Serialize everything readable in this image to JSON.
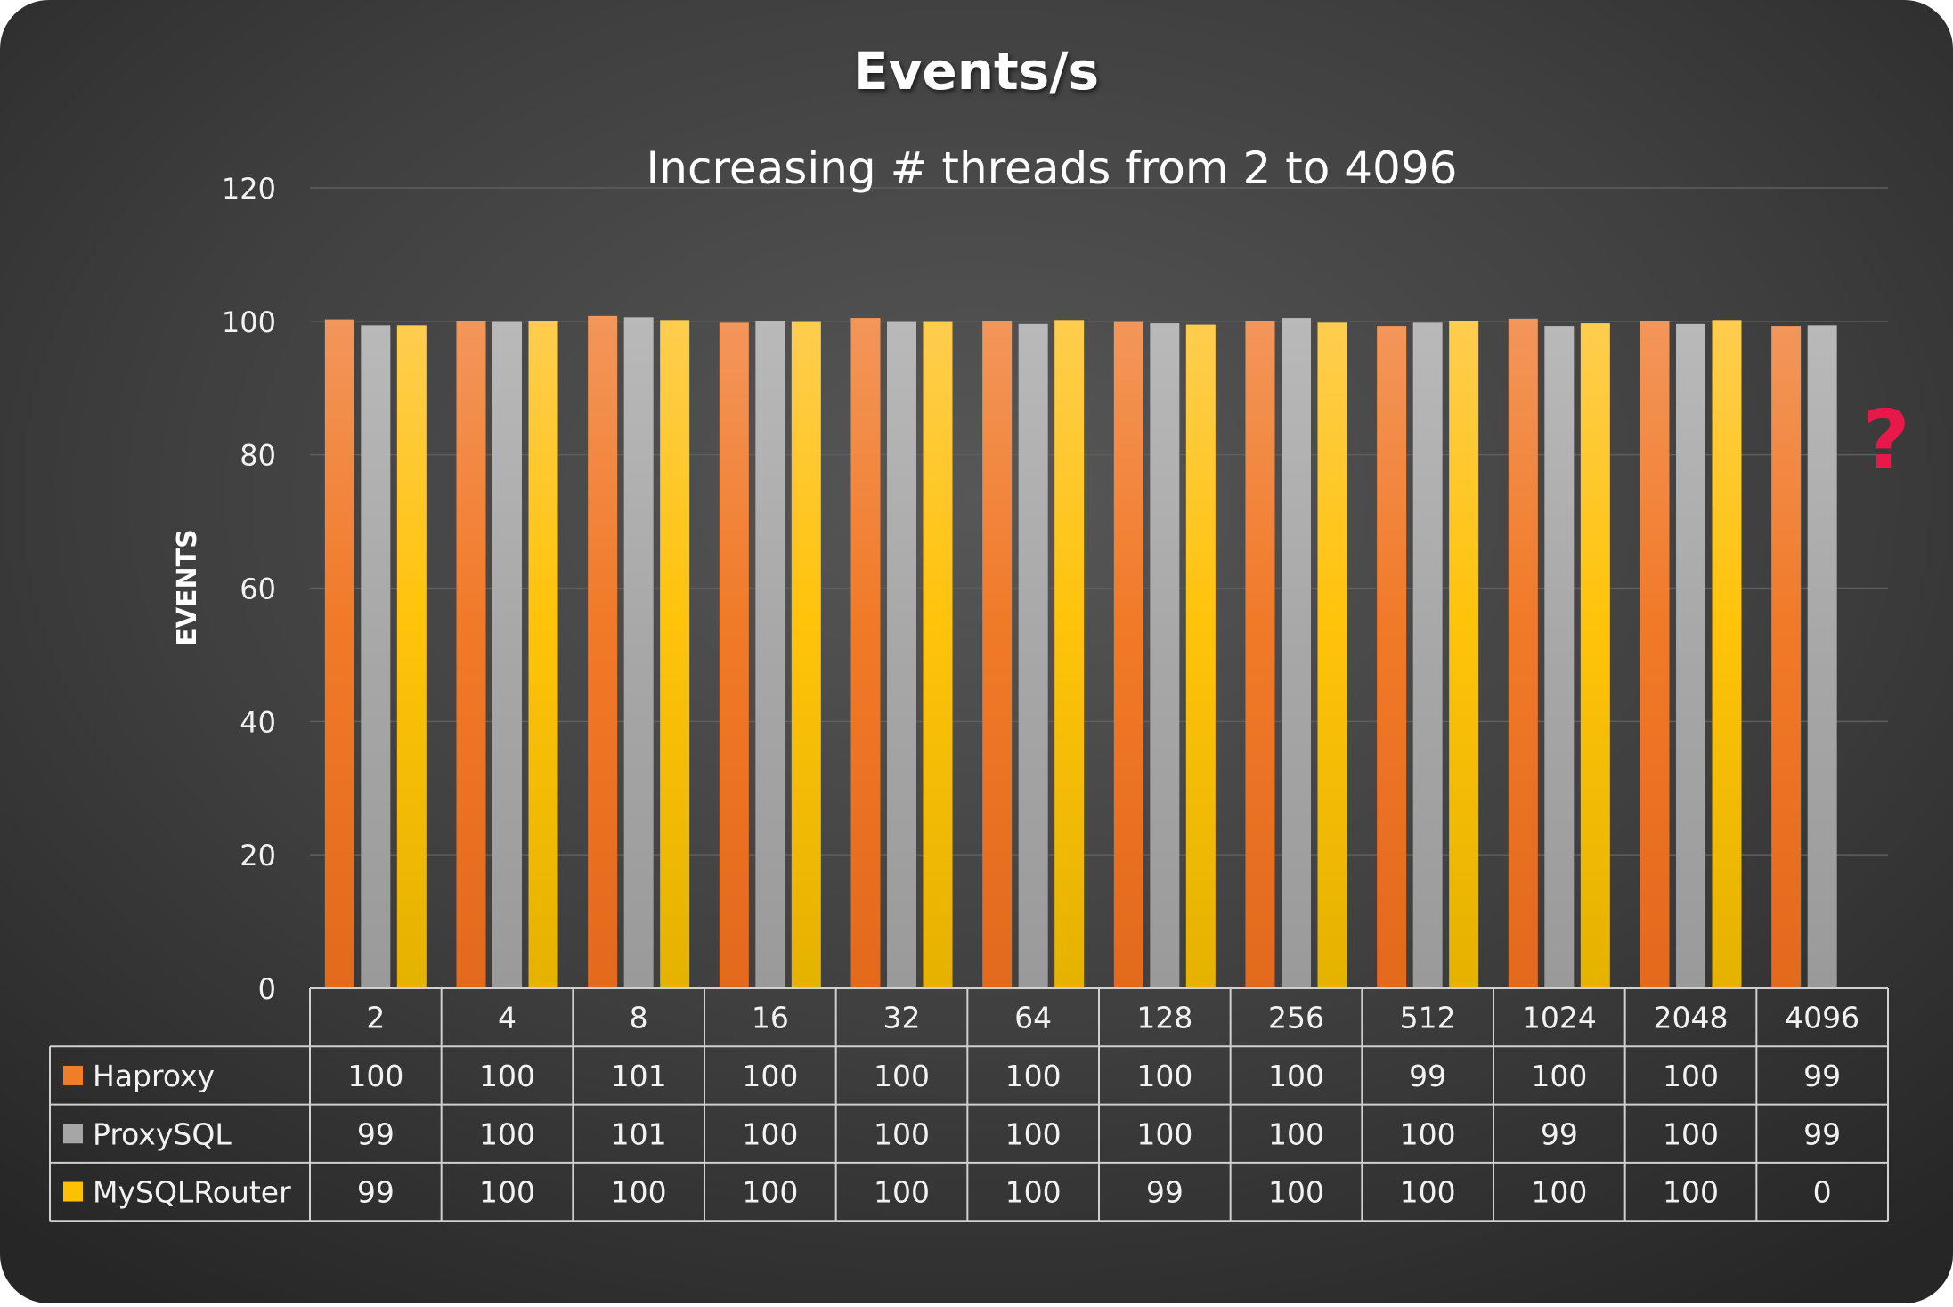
{
  "chart_data": {
    "type": "bar",
    "title": "Events/s",
    "subtitle": "Increasing # threads from 2 to 4096",
    "xlabel": "",
    "ylabel": "EVENTS",
    "ylim": [
      0,
      120
    ],
    "yticks": [
      0,
      20,
      40,
      60,
      80,
      100,
      120
    ],
    "grid": true,
    "legend": "table-left",
    "categories": [
      "2",
      "4",
      "8",
      "16",
      "32",
      "64",
      "128",
      "256",
      "512",
      "1024",
      "2048",
      "4096"
    ],
    "series": [
      {
        "name": "Haproxy",
        "color": "#f07d2a",
        "values": [
          100,
          100,
          101,
          100,
          100,
          100,
          100,
          100,
          99,
          100,
          100,
          99
        ],
        "plot_values": [
          100.3,
          100.1,
          100.8,
          99.8,
          100.5,
          100.1,
          99.9,
          100.1,
          99.3,
          100.4,
          100.1,
          99.3
        ]
      },
      {
        "name": "ProxySQL",
        "color": "#a6a6a6",
        "values": [
          99,
          100,
          101,
          100,
          100,
          100,
          100,
          100,
          100,
          99,
          100,
          99
        ],
        "plot_values": [
          99.4,
          99.9,
          100.6,
          100.0,
          99.9,
          99.6,
          99.7,
          100.5,
          99.8,
          99.3,
          99.6,
          99.4
        ]
      },
      {
        "name": "MySQLRouter",
        "color": "#ffc000",
        "values": [
          99,
          100,
          100,
          100,
          100,
          100,
          99,
          100,
          100,
          100,
          100,
          0
        ],
        "plot_values": [
          99.4,
          100.0,
          100.2,
          99.9,
          99.9,
          100.2,
          99.5,
          99.8,
          100.1,
          99.7,
          100.2,
          0
        ]
      }
    ],
    "annotation": "?",
    "annotation_color": "#e8194a"
  }
}
